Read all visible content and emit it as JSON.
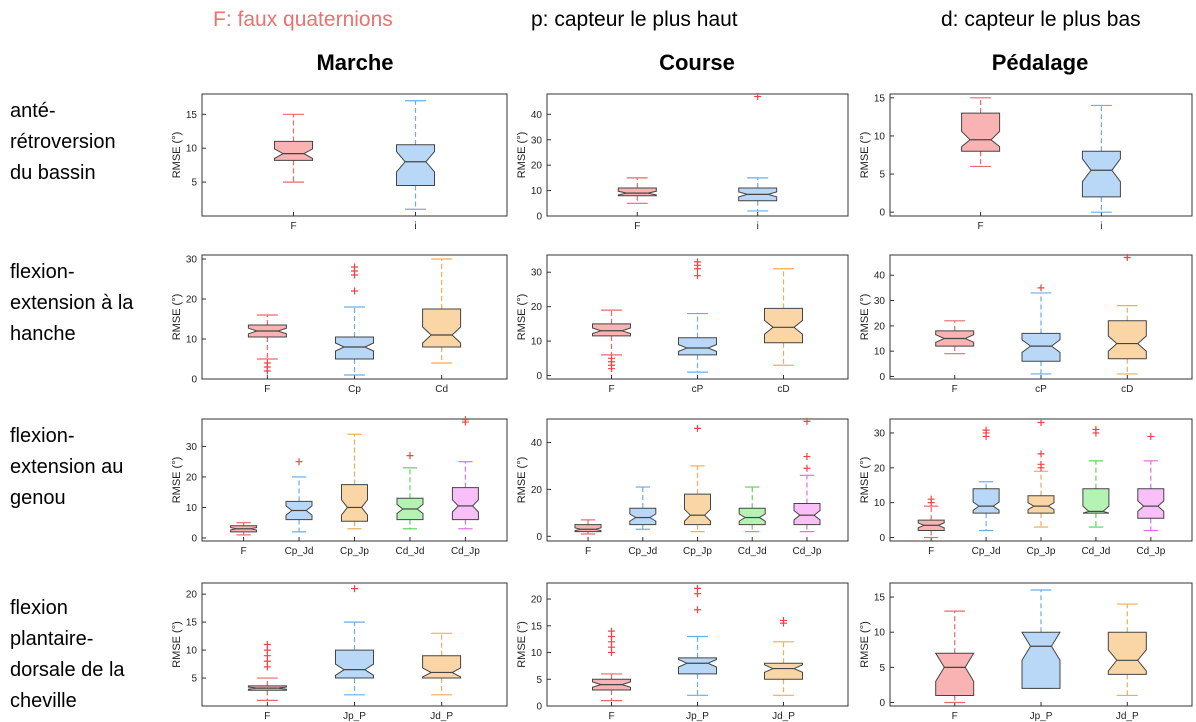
{
  "header": {
    "legend_f": "F: faux quaternions",
    "legend_f_color": "#f07070",
    "legend_p": "p: capteur le plus haut",
    "legend_d": "d: capteur le plus bas"
  },
  "columns": [
    "Marche",
    "Course",
    "Pédalage"
  ],
  "rows": [
    [
      "anté-",
      "rétroversion",
      "du bassin"
    ],
    [
      "flexion-",
      "extension à la",
      "hanche"
    ],
    [
      "flexion-",
      "extension au",
      "genou"
    ],
    [
      "flexion",
      "plantaire-",
      "dorsale de la",
      "cheville"
    ]
  ],
  "colors": {
    "red": {
      "fill": "#f9b3b3",
      "line": "#e86a6a",
      "median": "#444444"
    },
    "blue": {
      "fill": "#b9d8f7",
      "line": "#6aaee8",
      "median": "#444444"
    },
    "orange": {
      "fill": "#fad6a6",
      "line": "#f0ac58",
      "median": "#444444"
    },
    "green": {
      "fill": "#b4f3b4",
      "line": "#5cd65c",
      "median": "#444444"
    },
    "pink": {
      "fill": "#f8bff8",
      "line": "#e070e0",
      "median": "#444444"
    },
    "outlier": "#ee4444"
  },
  "chart_data": [
    {
      "type": "box",
      "row": 0,
      "col": 0,
      "ylabel": "RMSE (°)",
      "ylim": [
        0,
        18
      ],
      "yticks": [
        5,
        10,
        15
      ],
      "categories": [
        "F",
        "i"
      ],
      "boxes": [
        {
          "color": "red",
          "min": 5,
          "q1": 8.2,
          "median": 9.2,
          "q3": 11,
          "max": 15,
          "notch": [
            8.5,
            9.9
          ],
          "outliers": []
        },
        {
          "color": "blue",
          "min": 1,
          "q1": 4.5,
          "median": 8,
          "q3": 10.5,
          "max": 17,
          "notch": [
            6.5,
            9.5
          ],
          "outliers": []
        }
      ]
    },
    {
      "type": "box",
      "row": 0,
      "col": 1,
      "ylabel": "RMSE (°)",
      "ylim": [
        0,
        48
      ],
      "yticks": [
        0,
        10,
        20,
        30,
        40
      ],
      "categories": [
        "F",
        "i"
      ],
      "boxes": [
        {
          "color": "red",
          "min": 5,
          "q1": 8,
          "median": 9,
          "q3": 11,
          "max": 15,
          "notch": [
            8.3,
            9.7
          ],
          "outliers": []
        },
        {
          "color": "blue",
          "min": 2,
          "q1": 6,
          "median": 8.5,
          "q3": 11,
          "max": 15,
          "notch": [
            7.5,
            9.5
          ],
          "outliers": [
            47
          ]
        }
      ]
    },
    {
      "type": "box",
      "row": 0,
      "col": 2,
      "ylabel": "RMSE (°)",
      "ylim": [
        -0.5,
        15.5
      ],
      "yticks": [
        0,
        5,
        10,
        15
      ],
      "categories": [
        "F",
        "i"
      ],
      "boxes": [
        {
          "color": "red",
          "min": 6,
          "q1": 8,
          "median": 9.5,
          "q3": 13,
          "max": 15,
          "notch": [
            8.6,
            10.6
          ],
          "outliers": []
        },
        {
          "color": "blue",
          "min": 0,
          "q1": 2,
          "median": 5.5,
          "q3": 8,
          "max": 14,
          "notch": [
            4,
            7
          ],
          "outliers": []
        }
      ]
    },
    {
      "type": "box",
      "row": 1,
      "col": 0,
      "ylabel": "RMSE (°)",
      "ylim": [
        0,
        31
      ],
      "yticks": [
        0,
        10,
        20,
        30
      ],
      "categories": [
        "F",
        "Cp",
        "Cd"
      ],
      "boxes": [
        {
          "color": "red",
          "min": 5,
          "q1": 10.5,
          "median": 12,
          "q3": 13.5,
          "max": 16,
          "notch": [
            11.3,
            12.7
          ],
          "outliers": [
            2,
            3,
            4
          ]
        },
        {
          "color": "blue",
          "min": 1,
          "q1": 5,
          "median": 8,
          "q3": 10.5,
          "max": 18,
          "notch": [
            7,
            9
          ],
          "outliers": [
            22,
            26,
            27,
            28
          ]
        },
        {
          "color": "orange",
          "min": 4,
          "q1": 8,
          "median": 11,
          "q3": 17.5,
          "max": 30,
          "notch": [
            9,
            13
          ],
          "outliers": []
        }
      ]
    },
    {
      "type": "box",
      "row": 1,
      "col": 1,
      "ylabel": "RMSE (°)",
      "ylim": [
        -1,
        35
      ],
      "yticks": [
        0,
        10,
        20,
        30
      ],
      "categories": [
        "F",
        "cP",
        "cD"
      ],
      "boxes": [
        {
          "color": "red",
          "min": 6,
          "q1": 11.5,
          "median": 13,
          "q3": 15,
          "max": 19,
          "notch": [
            12.2,
            13.8
          ],
          "outliers": [
            2,
            3,
            4,
            5
          ]
        },
        {
          "color": "blue",
          "min": 1,
          "q1": 6,
          "median": 8,
          "q3": 11,
          "max": 18,
          "notch": [
            7,
            9
          ],
          "outliers": [
            29,
            31,
            32,
            33
          ]
        },
        {
          "color": "orange",
          "min": 3,
          "q1": 9.5,
          "median": 14,
          "q3": 19.5,
          "max": 31,
          "notch": [
            12,
            16
          ],
          "outliers": []
        }
      ]
    },
    {
      "type": "box",
      "row": 1,
      "col": 2,
      "ylabel": "RMSE (°)",
      "ylim": [
        -1,
        48
      ],
      "yticks": [
        0,
        10,
        20,
        30,
        40
      ],
      "categories": [
        "F",
        "cP",
        "cD"
      ],
      "boxes": [
        {
          "color": "red",
          "min": 9,
          "q1": 12,
          "median": 15,
          "q3": 18,
          "max": 22,
          "notch": [
            13.5,
            16.5
          ],
          "outliers": []
        },
        {
          "color": "blue",
          "min": 1,
          "q1": 6,
          "median": 12,
          "q3": 17,
          "max": 33,
          "notch": [
            9.5,
            14.5
          ],
          "outliers": [
            35
          ]
        },
        {
          "color": "orange",
          "min": 1,
          "q1": 7,
          "median": 13,
          "q3": 22,
          "max": 28,
          "notch": [
            10,
            16
          ],
          "outliers": [
            47
          ]
        }
      ]
    },
    {
      "type": "box",
      "row": 2,
      "col": 0,
      "ylabel": "RMSE (°)",
      "ylim": [
        -1,
        39
      ],
      "yticks": [
        0,
        10,
        20,
        30
      ],
      "categories": [
        "F",
        "Cp_Jd",
        "Cp_Jp",
        "Cd_Jd",
        "Cd_Jp"
      ],
      "boxes": [
        {
          "color": "red",
          "min": 1,
          "q1": 2,
          "median": 3,
          "q3": 4,
          "max": 5,
          "notch": [
            2.6,
            3.4
          ],
          "outliers": []
        },
        {
          "color": "blue",
          "min": 2,
          "q1": 6,
          "median": 9,
          "q3": 12,
          "max": 20,
          "notch": [
            7.5,
            10.5
          ],
          "outliers": [
            25
          ]
        },
        {
          "color": "orange",
          "min": 3,
          "q1": 5.5,
          "median": 10,
          "q3": 17.5,
          "max": 34,
          "notch": [
            7.5,
            12.5
          ],
          "outliers": []
        },
        {
          "color": "green",
          "min": 3,
          "q1": 6,
          "median": 9.5,
          "q3": 13,
          "max": 23,
          "notch": [
            8,
            11
          ],
          "outliers": [
            27
          ]
        },
        {
          "color": "pink",
          "min": 3,
          "q1": 6,
          "median": 10.5,
          "q3": 16.5,
          "max": 25,
          "notch": [
            8.5,
            12.5
          ],
          "outliers": [
            38,
            38.8
          ]
        }
      ]
    },
    {
      "type": "box",
      "row": 2,
      "col": 1,
      "ylabel": "RMSE (°)",
      "ylim": [
        -2,
        50
      ],
      "yticks": [
        0,
        20,
        40
      ],
      "categories": [
        "F",
        "Cp_Jd",
        "Cp_Jp",
        "Cd_Jd",
        "Cd_Jp"
      ],
      "boxes": [
        {
          "color": "red",
          "min": 1,
          "q1": 2,
          "median": 3,
          "q3": 5,
          "max": 7,
          "notch": [
            2.4,
            3.6
          ],
          "outliers": []
        },
        {
          "color": "blue",
          "min": 3,
          "q1": 5,
          "median": 8,
          "q3": 12,
          "max": 21,
          "notch": [
            6.5,
            9.5
          ],
          "outliers": []
        },
        {
          "color": "orange",
          "min": 2,
          "q1": 5,
          "median": 9,
          "q3": 18,
          "max": 30,
          "notch": [
            6.5,
            11.5
          ],
          "outliers": [
            46
          ]
        },
        {
          "color": "green",
          "min": 2,
          "q1": 5,
          "median": 8,
          "q3": 12,
          "max": 21,
          "notch": [
            6.5,
            9.5
          ],
          "outliers": []
        },
        {
          "color": "pink",
          "min": 2,
          "q1": 5,
          "median": 9,
          "q3": 14,
          "max": 26,
          "notch": [
            7,
            11
          ],
          "outliers": [
            29,
            34,
            49
          ]
        }
      ]
    },
    {
      "type": "box",
      "row": 2,
      "col": 2,
      "ylabel": "RMSE (°)",
      "ylim": [
        -1,
        34
      ],
      "yticks": [
        0,
        10,
        20,
        30
      ],
      "categories": [
        "F",
        "Cp_Jd",
        "Cp_Jp",
        "Cd_Jd",
        "Cd_Jp"
      ],
      "boxes": [
        {
          "color": "red",
          "min": 0,
          "q1": 2,
          "median": 3.5,
          "q3": 5,
          "max": 9,
          "notch": [
            2.8,
            4.2
          ],
          "outliers": [
            10,
            11
          ]
        },
        {
          "color": "blue",
          "min": 2,
          "q1": 7,
          "median": 9,
          "q3": 14,
          "max": 16,
          "notch": [
            7.8,
            10.2
          ],
          "outliers": [
            29,
            30,
            30.8
          ]
        },
        {
          "color": "orange",
          "min": 3,
          "q1": 7,
          "median": 9,
          "q3": 12,
          "max": 19,
          "notch": [
            8,
            10
          ],
          "outliers": [
            20,
            21,
            24,
            33
          ]
        },
        {
          "color": "green",
          "min": 3,
          "q1": 7,
          "median": 7.5,
          "q3": 14,
          "max": 22,
          "notch": [
            6,
            9
          ],
          "outliers": [
            30,
            31
          ]
        },
        {
          "color": "pink",
          "min": 2,
          "q1": 5.5,
          "median": 9,
          "q3": 14,
          "max": 22,
          "notch": [
            7.5,
            10.5
          ],
          "outliers": [
            29
          ]
        }
      ]
    },
    {
      "type": "box",
      "row": 3,
      "col": 0,
      "ylabel": "RMSE (°)",
      "ylim": [
        0,
        22
      ],
      "yticks": [
        5,
        10,
        15,
        20
      ],
      "categories": [
        "F",
        "Jp_P",
        "Jd_P"
      ],
      "boxes": [
        {
          "color": "red",
          "min": 1,
          "q1": 2.8,
          "median": 3.2,
          "q3": 3.6,
          "max": 5,
          "notch": [
            3,
            3.4
          ],
          "outliers": [
            7,
            8,
            9,
            10,
            11
          ]
        },
        {
          "color": "blue",
          "min": 2,
          "q1": 5,
          "median": 6.5,
          "q3": 10,
          "max": 15,
          "notch": [
            5.5,
            7.5
          ],
          "outliers": [
            21
          ]
        },
        {
          "color": "orange",
          "min": 2,
          "q1": 5,
          "median": 6,
          "q3": 9,
          "max": 13,
          "notch": [
            5.2,
            6.8
          ],
          "outliers": []
        }
      ]
    },
    {
      "type": "box",
      "row": 3,
      "col": 1,
      "ylabel": "RMSE (°)",
      "ylim": [
        0,
        23
      ],
      "yticks": [
        0,
        5,
        10,
        15,
        20
      ],
      "categories": [
        "F",
        "Jp_P",
        "Jd_P"
      ],
      "boxes": [
        {
          "color": "red",
          "min": 1,
          "q1": 3,
          "median": 4,
          "q3": 5,
          "max": 6,
          "notch": [
            3.5,
            4.5
          ],
          "outliers": [
            10,
            11,
            12,
            13,
            14
          ]
        },
        {
          "color": "blue",
          "min": 2,
          "q1": 6,
          "median": 8,
          "q3": 9,
          "max": 13,
          "notch": [
            7.3,
            8.7
          ],
          "outliers": [
            18,
            21,
            22
          ]
        },
        {
          "color": "orange",
          "min": 2,
          "q1": 5,
          "median": 7,
          "q3": 8,
          "max": 12,
          "notch": [
            6.3,
            7.7
          ],
          "outliers": [
            15.5,
            16
          ]
        }
      ]
    },
    {
      "type": "box",
      "row": 3,
      "col": 2,
      "ylabel": "RMSE (°)",
      "ylim": [
        -0.5,
        17
      ],
      "yticks": [
        0,
        5,
        10,
        15
      ],
      "categories": [
        "F",
        "Jp_P",
        "Jd_P"
      ],
      "boxes": [
        {
          "color": "red",
          "min": 0,
          "q1": 1,
          "median": 5,
          "q3": 7,
          "max": 13,
          "notch": [
            3,
            7
          ],
          "outliers": []
        },
        {
          "color": "blue",
          "min": 2,
          "q1": 2,
          "median": 8,
          "q3": 10,
          "max": 16,
          "notch": [
            6,
            10
          ],
          "outliers": []
        },
        {
          "color": "orange",
          "min": 1,
          "q1": 4,
          "median": 6,
          "q3": 10,
          "max": 14,
          "notch": [
            4.5,
            7.5
          ],
          "outliers": []
        }
      ]
    }
  ]
}
